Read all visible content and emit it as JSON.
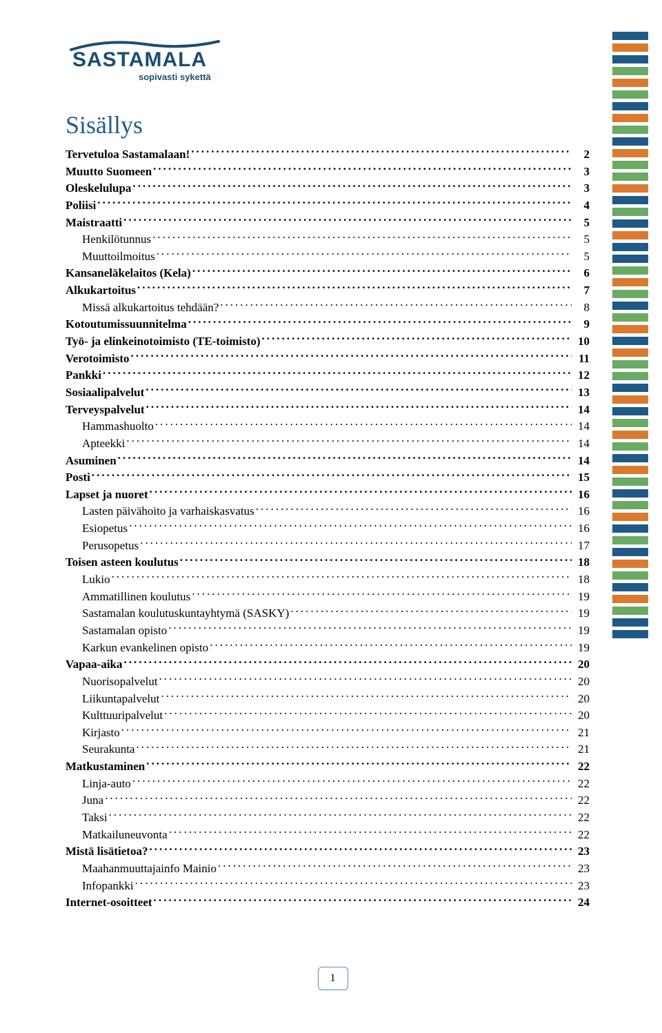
{
  "logo": {
    "brand": "SASTAMALA",
    "tagline": "sopivasti sykettä",
    "primary_color": "#1b4d73",
    "accent_color": "#1b4d73"
  },
  "title": "Sisällys",
  "title_color": "#1f5b8f",
  "toc": [
    {
      "label": "Tervetuloa Sastamalaan!",
      "page": "2",
      "bold": true,
      "indent": false
    },
    {
      "label": "Muutto Suomeen",
      "page": "3",
      "bold": true,
      "indent": false
    },
    {
      "label": "Oleskelulupa",
      "page": "3",
      "bold": true,
      "indent": false
    },
    {
      "label": "Poliisi",
      "page": "4",
      "bold": true,
      "indent": false
    },
    {
      "label": "Maistraatti",
      "page": "5",
      "bold": true,
      "indent": false
    },
    {
      "label": "Henkilötunnus",
      "page": "5",
      "bold": false,
      "indent": true
    },
    {
      "label": "Muuttoilmoitus",
      "page": "5",
      "bold": false,
      "indent": true
    },
    {
      "label": "Kansaneläkelaitos (Kela)",
      "page": "6",
      "bold": true,
      "indent": false
    },
    {
      "label": "Alkukartoitus",
      "page": "7",
      "bold": true,
      "indent": false
    },
    {
      "label": "Missä alkukartoitus tehdään?",
      "page": "8",
      "bold": false,
      "indent": true
    },
    {
      "label": "Kotoutumissuunnitelma",
      "page": "9",
      "bold": true,
      "indent": false
    },
    {
      "label": "Työ- ja elinkeinotoimisto (TE-toimisto)",
      "page": "10",
      "bold": true,
      "indent": false
    },
    {
      "label": "Verotoimisto",
      "page": "11",
      "bold": true,
      "indent": false
    },
    {
      "label": "Pankki",
      "page": "12",
      "bold": true,
      "indent": false
    },
    {
      "label": "Sosiaalipalvelut",
      "page": "13",
      "bold": true,
      "indent": false
    },
    {
      "label": "Terveyspalvelut",
      "page": "14",
      "bold": true,
      "indent": false
    },
    {
      "label": "Hammashuolto",
      "page": "14",
      "bold": false,
      "indent": true
    },
    {
      "label": "Apteekki",
      "page": "14",
      "bold": false,
      "indent": true
    },
    {
      "label": "Asuminen",
      "page": "14",
      "bold": true,
      "indent": false
    },
    {
      "label": "Posti",
      "page": "15",
      "bold": true,
      "indent": false
    },
    {
      "label": "Lapset ja nuoret",
      "page": "16",
      "bold": true,
      "indent": false
    },
    {
      "label": "Lasten päivähoito ja varhaiskasvatus",
      "page": "16",
      "bold": false,
      "indent": true
    },
    {
      "label": "Esiopetus",
      "page": "16",
      "bold": false,
      "indent": true
    },
    {
      "label": "Perusopetus",
      "page": "17",
      "bold": false,
      "indent": true
    },
    {
      "label": "Toisen asteen koulutus",
      "page": "18",
      "bold": true,
      "indent": false
    },
    {
      "label": "Lukio",
      "page": "18",
      "bold": false,
      "indent": true
    },
    {
      "label": "Ammatillinen koulutus",
      "page": "19",
      "bold": false,
      "indent": true
    },
    {
      "label": "Sastamalan koulutuskuntayhtymä (SASKY)",
      "page": "19",
      "bold": false,
      "indent": true
    },
    {
      "label": "Sastamalan opisto",
      "page": "19",
      "bold": false,
      "indent": true
    },
    {
      "label": "Karkun evankelinen opisto",
      "page": "19",
      "bold": false,
      "indent": true
    },
    {
      "label": "Vapaa-aika",
      "page": "20",
      "bold": true,
      "indent": false
    },
    {
      "label": "Nuorisopalvelut",
      "page": "20",
      "bold": false,
      "indent": true
    },
    {
      "label": "Liikuntapalvelut",
      "page": "20",
      "bold": false,
      "indent": true
    },
    {
      "label": "Kulttuuripalvelut",
      "page": "20",
      "bold": false,
      "indent": true
    },
    {
      "label": "Kirjasto",
      "page": "21",
      "bold": false,
      "indent": true
    },
    {
      "label": "Seurakunta",
      "page": "21",
      "bold": false,
      "indent": true
    },
    {
      "label": "Matkustaminen",
      "page": "22",
      "bold": true,
      "indent": false
    },
    {
      "label": "Linja-auto",
      "page": "22",
      "bold": false,
      "indent": true
    },
    {
      "label": "Juna",
      "page": "22",
      "bold": false,
      "indent": true
    },
    {
      "label": "Taksi",
      "page": "22",
      "bold": false,
      "indent": true
    },
    {
      "label": "Matkailuneuvonta",
      "page": "22",
      "bold": false,
      "indent": true
    },
    {
      "label": "Mistä lisätietoa?",
      "page": "23",
      "bold": true,
      "indent": false
    },
    {
      "label": "Maahanmuuttajainfo Mainio",
      "page": "23",
      "bold": false,
      "indent": true
    },
    {
      "label": "Infopankki",
      "page": "23",
      "bold": false,
      "indent": true
    },
    {
      "label": "Internet-osoitteet",
      "page": "24",
      "bold": true,
      "indent": false
    }
  ],
  "page_number": "1",
  "stripe_colors": [
    "#1e5a85",
    "#d97a2f",
    "#1e5a85",
    "#6aaa64",
    "#d97a2f",
    "#6aaa64",
    "#1e5a85",
    "#d97a2f",
    "#6aaa64",
    "#1e5a85",
    "#d97a2f",
    "#6aaa64",
    "#6aaa64",
    "#d97a2f",
    "#1e5a85",
    "#6aaa64",
    "#1e5a85",
    "#d97a2f",
    "#1e5a85",
    "#1e5a85",
    "#6aaa64",
    "#d97a2f",
    "#6aaa64",
    "#1e5a85",
    "#6aaa64",
    "#d97a2f",
    "#1e5a85",
    "#d97a2f",
    "#6aaa64",
    "#6aaa64",
    "#1e5a85",
    "#d97a2f",
    "#1e5a85",
    "#6aaa64",
    "#d97a2f",
    "#6aaa64",
    "#1e5a85",
    "#d97a2f",
    "#6aaa64",
    "#1e5a85",
    "#6aaa64",
    "#d97a2f",
    "#1e5a85",
    "#6aaa64",
    "#1e5a85",
    "#d97a2f",
    "#6aaa64",
    "#1e5a85",
    "#d97a2f",
    "#6aaa64",
    "#1e5a85",
    "#1e5a85"
  ]
}
